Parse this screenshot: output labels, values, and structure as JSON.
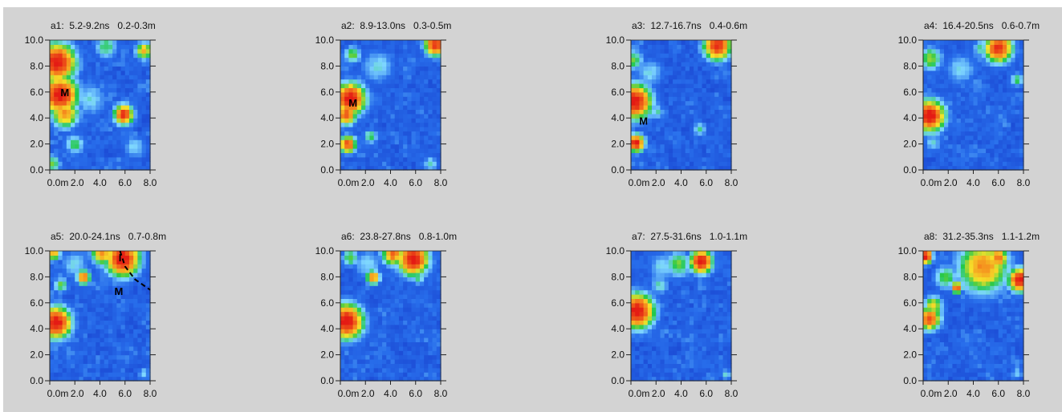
{
  "palette": {
    "background": "#d3d3d3",
    "low": "#1436c8",
    "mid": "#7fd7ff",
    "green": "#22c84a",
    "yellow": "#f5e22a",
    "high": "#e41b14"
  },
  "chart_data": [
    {
      "type": "heatmap",
      "id": "a1",
      "title": "a1:  5.2-9.2ns   0.2-0.3m",
      "xlim": [
        0,
        8
      ],
      "ylim": [
        0,
        10
      ],
      "xticks": [
        "0.0m",
        "2.0",
        "4.0",
        "6.0",
        "8.0"
      ],
      "yticks": [
        "0.0",
        "2.0",
        "4.0",
        "6.0",
        "8.0",
        "10.0"
      ],
      "hot": [
        {
          "x": 0.6,
          "y": 8.3,
          "v": 1.0,
          "r": 1.3
        },
        {
          "x": 0.8,
          "y": 5.8,
          "v": 1.0,
          "r": 1.3
        },
        {
          "x": 1.2,
          "y": 4.4,
          "v": 0.8,
          "r": 1.0
        },
        {
          "x": 5.9,
          "y": 4.3,
          "v": 0.95,
          "r": 0.7
        },
        {
          "x": 7.5,
          "y": 9.2,
          "v": 0.75,
          "r": 0.6
        },
        {
          "x": 4.5,
          "y": 9.5,
          "v": 0.55,
          "r": 0.8
        },
        {
          "x": 2.0,
          "y": 2.0,
          "v": 0.55,
          "r": 0.7
        },
        {
          "x": 0.2,
          "y": 0.5,
          "v": 0.6,
          "r": 0.6
        },
        {
          "x": 3.2,
          "y": 5.5,
          "v": 0.45,
          "r": 1.2
        },
        {
          "x": 6.8,
          "y": 1.8,
          "v": 0.45,
          "r": 0.8
        }
      ],
      "markers": [
        {
          "label": "M",
          "x": 1.2,
          "y": 6.0
        }
      ],
      "dashed_line": []
    },
    {
      "type": "heatmap",
      "id": "a2",
      "title": "a2:  8.9-13.0ns   0.3-0.5m",
      "xlim": [
        0,
        8
      ],
      "ylim": [
        0,
        10
      ],
      "xticks": [
        "0.0m",
        "2.0",
        "4.0",
        "6.0",
        "8.0"
      ],
      "yticks": [
        "0.0",
        "2.0",
        "4.0",
        "6.0",
        "8.0",
        "10.0"
      ],
      "hot": [
        {
          "x": 0.8,
          "y": 5.5,
          "v": 1.0,
          "r": 1.1
        },
        {
          "x": 0.5,
          "y": 4.3,
          "v": 0.9,
          "r": 0.7
        },
        {
          "x": 0.6,
          "y": 2.0,
          "v": 0.9,
          "r": 0.6
        },
        {
          "x": 7.6,
          "y": 9.7,
          "v": 0.95,
          "r": 0.8
        },
        {
          "x": 1.0,
          "y": 8.9,
          "v": 0.6,
          "r": 0.6
        },
        {
          "x": 2.4,
          "y": 2.6,
          "v": 0.55,
          "r": 0.5
        },
        {
          "x": 7.2,
          "y": 0.5,
          "v": 0.5,
          "r": 0.5
        },
        {
          "x": 3.0,
          "y": 8.0,
          "v": 0.45,
          "r": 1.2
        }
      ],
      "markers": [
        {
          "label": "M",
          "x": 1.0,
          "y": 5.2
        }
      ],
      "dashed_line": []
    },
    {
      "type": "heatmap",
      "id": "a3",
      "title": "a3:  12.7-16.7ns   0.4-0.6m",
      "xlim": [
        0,
        8
      ],
      "ylim": [
        0,
        10
      ],
      "xticks": [
        "0.0m",
        "2.0",
        "4.0",
        "6.0",
        "8.0"
      ],
      "yticks": [
        "0.0",
        "2.0",
        "4.0",
        "6.0",
        "8.0",
        "10.0"
      ],
      "hot": [
        {
          "x": 0.3,
          "y": 5.3,
          "v": 1.0,
          "r": 1.2
        },
        {
          "x": 0.4,
          "y": 2.1,
          "v": 1.0,
          "r": 0.6
        },
        {
          "x": 6.9,
          "y": 9.6,
          "v": 0.95,
          "r": 1.0
        },
        {
          "x": 0.2,
          "y": 8.5,
          "v": 0.6,
          "r": 0.7
        },
        {
          "x": 2.1,
          "y": 4.5,
          "v": 0.5,
          "r": 0.5
        },
        {
          "x": 5.5,
          "y": 3.2,
          "v": 0.5,
          "r": 0.5
        },
        {
          "x": 1.5,
          "y": 7.5,
          "v": 0.45,
          "r": 1.0
        }
      ],
      "markers": [
        {
          "label": "M",
          "x": 1.0,
          "y": 3.8
        }
      ],
      "dashed_line": []
    },
    {
      "type": "heatmap",
      "id": "a4",
      "title": "a4:  16.4-20.5ns   0.6-0.7m",
      "xlim": [
        0,
        8
      ],
      "ylim": [
        0,
        10
      ],
      "xticks": [
        "0.0m",
        "2.0",
        "4.0",
        "6.0",
        "8.0"
      ],
      "yticks": [
        "0.0",
        "2.0",
        "4.0",
        "6.0",
        "8.0",
        "10.0"
      ],
      "hot": [
        {
          "x": 0.5,
          "y": 4.2,
          "v": 1.0,
          "r": 1.1
        },
        {
          "x": 6.0,
          "y": 9.4,
          "v": 0.95,
          "r": 1.0
        },
        {
          "x": 0.6,
          "y": 8.6,
          "v": 0.65,
          "r": 0.8
        },
        {
          "x": 7.5,
          "y": 7.0,
          "v": 0.55,
          "r": 0.5
        },
        {
          "x": 0.8,
          "y": 2.1,
          "v": 0.45,
          "r": 0.6
        },
        {
          "x": 4.6,
          "y": 9.4,
          "v": 0.5,
          "r": 0.6
        },
        {
          "x": 3.0,
          "y": 7.8,
          "v": 0.45,
          "r": 1.1
        }
      ],
      "markers": [],
      "dashed_line": []
    },
    {
      "type": "heatmap",
      "id": "a5",
      "title": "a5:  20.0-24.1ns   0.7-0.8m",
      "xlim": [
        0,
        8
      ],
      "ylim": [
        0,
        10
      ],
      "xticks": [
        "0.0m",
        "2.0",
        "4.0",
        "6.0",
        "8.0"
      ],
      "yticks": [
        "0.0",
        "2.0",
        "4.0",
        "6.0",
        "8.0",
        "10.0"
      ],
      "hot": [
        {
          "x": 0.5,
          "y": 4.5,
          "v": 1.0,
          "r": 1.1
        },
        {
          "x": 5.8,
          "y": 9.4,
          "v": 1.0,
          "r": 1.2
        },
        {
          "x": 4.2,
          "y": 9.8,
          "v": 0.8,
          "r": 0.8
        },
        {
          "x": 2.7,
          "y": 8.0,
          "v": 0.85,
          "r": 0.5
        },
        {
          "x": 0.9,
          "y": 7.4,
          "v": 0.6,
          "r": 0.5
        },
        {
          "x": 0.3,
          "y": 9.8,
          "v": 0.75,
          "r": 0.5
        },
        {
          "x": 7.5,
          "y": 0.6,
          "v": 0.45,
          "r": 0.4
        },
        {
          "x": 2.0,
          "y": 9.0,
          "v": 0.45,
          "r": 1.0
        }
      ],
      "markers": [
        {
          "label": "M",
          "x": 5.5,
          "y": 6.9
        },
        {
          "label": "I",
          "x": 5.6,
          "y": 9.5
        }
      ],
      "dashed_line": [
        {
          "x": 5.6,
          "y": 10.0
        },
        {
          "x": 6.0,
          "y": 8.8
        },
        {
          "x": 6.8,
          "y": 7.8
        },
        {
          "x": 8.0,
          "y": 7.0
        }
      ]
    },
    {
      "type": "heatmap",
      "id": "a6",
      "title": "a6:  23.8-27.8ns   0.8-1.0m",
      "xlim": [
        0,
        8
      ],
      "ylim": [
        0,
        10
      ],
      "xticks": [
        "0.0m",
        "2.0",
        "4.0",
        "6.0",
        "8.0"
      ],
      "yticks": [
        "0.0",
        "2.0",
        "4.0",
        "6.0",
        "8.0",
        "10.0"
      ],
      "hot": [
        {
          "x": 0.5,
          "y": 4.6,
          "v": 1.0,
          "r": 1.2
        },
        {
          "x": 5.8,
          "y": 9.4,
          "v": 1.0,
          "r": 1.1
        },
        {
          "x": 4.2,
          "y": 9.8,
          "v": 0.85,
          "r": 0.8
        },
        {
          "x": 2.6,
          "y": 8.0,
          "v": 0.85,
          "r": 0.5
        },
        {
          "x": 0.8,
          "y": 9.5,
          "v": 0.6,
          "r": 0.6
        },
        {
          "x": 6.2,
          "y": 8.0,
          "v": 0.55,
          "r": 0.5
        },
        {
          "x": 2.2,
          "y": 9.0,
          "v": 0.45,
          "r": 1.0
        }
      ],
      "markers": [],
      "dashed_line": []
    },
    {
      "type": "heatmap",
      "id": "a7",
      "title": "a7:  27.5-31.6ns   1.0-1.1m",
      "xlim": [
        0,
        8
      ],
      "ylim": [
        0,
        10
      ],
      "xticks": [
        "0.0m",
        "2.0",
        "4.0",
        "6.0",
        "8.0"
      ],
      "yticks": [
        "0.0",
        "2.0",
        "4.0",
        "6.0",
        "8.0",
        "10.0"
      ],
      "hot": [
        {
          "x": 0.5,
          "y": 5.4,
          "v": 1.0,
          "r": 1.2
        },
        {
          "x": 5.6,
          "y": 9.2,
          "v": 1.0,
          "r": 0.8
        },
        {
          "x": 3.8,
          "y": 9.0,
          "v": 0.6,
          "r": 0.9
        },
        {
          "x": 2.3,
          "y": 7.4,
          "v": 0.5,
          "r": 0.6
        },
        {
          "x": 7.6,
          "y": 0.5,
          "v": 0.45,
          "r": 0.4
        },
        {
          "x": 2.5,
          "y": 8.8,
          "v": 0.45,
          "r": 1.0
        }
      ],
      "markers": [],
      "dashed_line": []
    },
    {
      "type": "heatmap",
      "id": "a8",
      "title": "a8:  31.2-35.3ns   1.1-1.2m",
      "xlim": [
        0,
        8
      ],
      "ylim": [
        0,
        10
      ],
      "xticks": [
        "0.0m",
        "2.0",
        "4.0",
        "6.0",
        "8.0"
      ],
      "yticks": [
        "0.0",
        "2.0",
        "4.0",
        "6.0",
        "8.0",
        "10.0"
      ],
      "hot": [
        {
          "x": 4.8,
          "y": 8.8,
          "v": 0.8,
          "r": 1.8
        },
        {
          "x": 7.7,
          "y": 7.8,
          "v": 1.0,
          "r": 0.8
        },
        {
          "x": 0.2,
          "y": 9.6,
          "v": 1.0,
          "r": 0.5
        },
        {
          "x": 6.0,
          "y": 9.5,
          "v": 0.85,
          "r": 0.7
        },
        {
          "x": 0.5,
          "y": 4.8,
          "v": 0.9,
          "r": 0.8
        },
        {
          "x": 0.8,
          "y": 5.8,
          "v": 0.7,
          "r": 0.7
        },
        {
          "x": 2.7,
          "y": 7.2,
          "v": 0.9,
          "r": 0.4
        },
        {
          "x": 1.8,
          "y": 8.0,
          "v": 0.6,
          "r": 0.8
        },
        {
          "x": 7.5,
          "y": 0.6,
          "v": 0.45,
          "r": 0.4
        }
      ],
      "markers": [],
      "dashed_line": []
    }
  ]
}
